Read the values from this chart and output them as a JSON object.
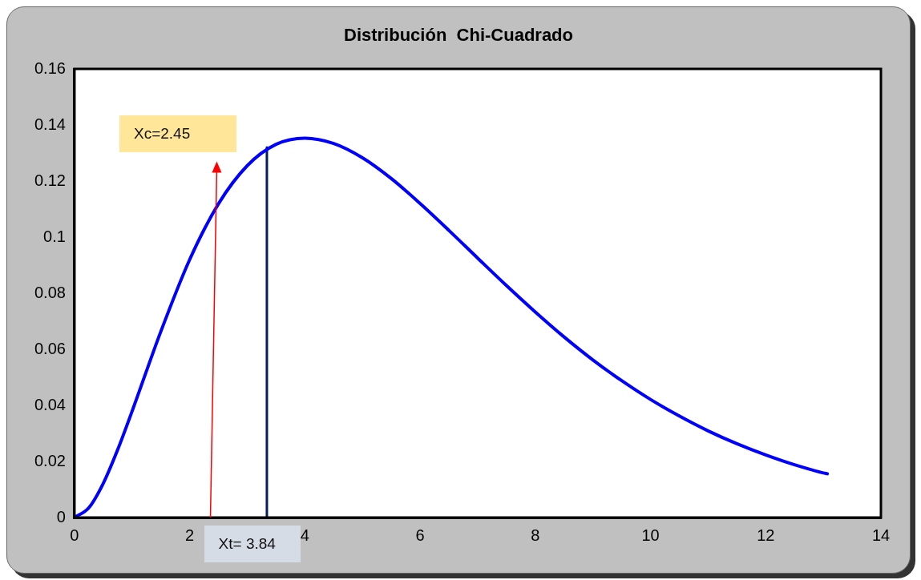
{
  "chart_data": {
    "type": "line",
    "title": "Distribución  Chi-Cuadrado",
    "xlim": [
      0,
      14
    ],
    "xticks": [
      0,
      2,
      4,
      6,
      8,
      10,
      12,
      14
    ],
    "ylim": [
      0,
      0.16
    ],
    "yticks": [
      0,
      0.02,
      0.04,
      0.06,
      0.08,
      0.1,
      0.12,
      0.14,
      0.16
    ],
    "grid": false,
    "legend": false,
    "marker": "none",
    "line_style": "solid",
    "series": [
      {
        "color": "#0000ff",
        "x": [
          0,
          0.25,
          0.5,
          0.75,
          1,
          1.5,
          2,
          2.5,
          3,
          3.5,
          4,
          4.5,
          5,
          5.5,
          6,
          6.5,
          7,
          7.5,
          8,
          8.5,
          9,
          9.5,
          10,
          10.5,
          11,
          11.5,
          12,
          12.5,
          13,
          13.07
        ],
        "values": [
          0,
          0.0035,
          0.0122,
          0.0242,
          0.0379,
          0.0664,
          0.092,
          0.1119,
          0.1255,
          0.1331,
          0.1353,
          0.1334,
          0.1283,
          0.1209,
          0.112,
          0.1024,
          0.0925,
          0.0827,
          0.0733,
          0.0644,
          0.0562,
          0.0488,
          0.0421,
          0.0362,
          0.0309,
          0.0263,
          0.0223,
          0.0188,
          0.0159,
          0.0156
        ]
      },
      {
        "color": "#002060",
        "x": [
          3.34,
          3.34
        ],
        "values": [
          0,
          0.132
        ]
      }
    ],
    "annotations": [
      "Xc=2.45",
      "Xt= 3.84"
    ]
  }
}
